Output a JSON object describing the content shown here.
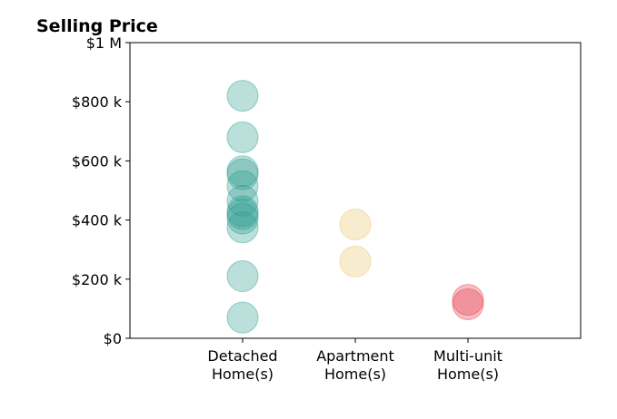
{
  "chart_data": {
    "type": "scatter",
    "title": "Selling Price",
    "xlabel": "",
    "ylabel": "",
    "categories": [
      [
        "Detached",
        "Home(s)"
      ],
      [
        "Apartment",
        "Home(s)"
      ],
      [
        "Multi-unit",
        "Home(s)"
      ]
    ],
    "xlim": [
      0,
      4
    ],
    "ylim": [
      0,
      1000000
    ],
    "yticks": [
      0,
      200000,
      400000,
      600000,
      800000,
      1000000
    ],
    "ytick_labels": [
      "$0",
      "$200 k",
      "$400 k",
      "$600 k",
      "$800 k",
      "$1 M"
    ],
    "grid": false,
    "series": [
      {
        "category": 0,
        "color": "#2a9d8f",
        "values": [
          820000,
          680000,
          565000,
          555000,
          515000,
          465000,
          430000,
          420000,
          405000,
          375000,
          210000,
          70000
        ]
      },
      {
        "category": 1,
        "color": "#e9c46a",
        "values": [
          385000,
          260000
        ]
      },
      {
        "category": 2,
        "color": "#e63946",
        "values": [
          130000,
          115000
        ]
      }
    ]
  }
}
